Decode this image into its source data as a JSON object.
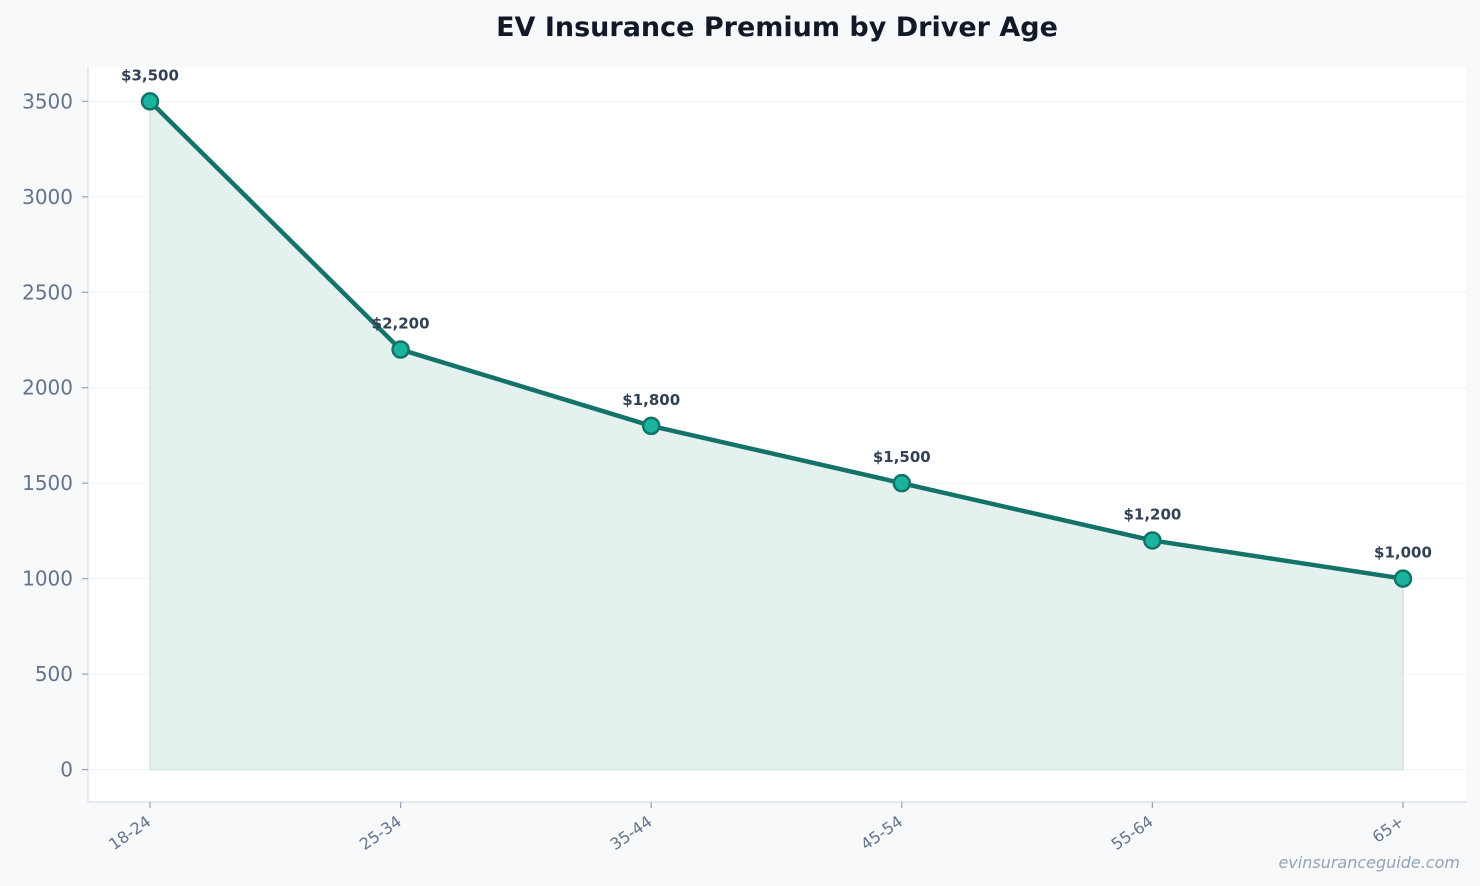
{
  "chart_data": {
    "type": "area",
    "title": "EV Insurance Premium by Driver Age",
    "xlabel": "",
    "ylabel": "",
    "categories": [
      "18-24",
      "25-34",
      "35-44",
      "45-54",
      "55-64",
      "65+"
    ],
    "series": [
      {
        "values": [
          3500,
          2200,
          1800,
          1500,
          1200,
          1000
        ],
        "data_labels": [
          "$3,500",
          "$2,200",
          "$1,800",
          "$1,500",
          "$1,200",
          "$1,000"
        ]
      }
    ],
    "y_ticks": [
      0,
      500,
      1000,
      1500,
      2000,
      2500,
      3000,
      3500
    ],
    "ylim": [
      -170,
      3680
    ],
    "grid": true,
    "legend": "none",
    "colors": {
      "line": "#137369",
      "marker_fill": "#1ab39e",
      "area_fill": "#e4f1ee",
      "plot_background": "#ffffff",
      "page_background": "#f7f9fb"
    }
  },
  "watermark": "evinsuranceguide.com"
}
